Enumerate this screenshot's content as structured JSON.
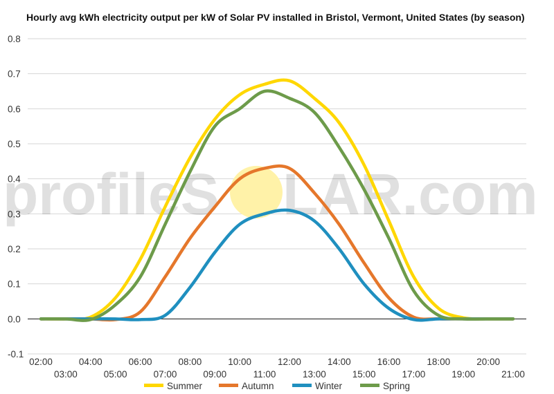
{
  "chart_data": {
    "type": "line",
    "title": "Hourly avg kWh electricity output per kW of Solar PV installed in Bristol, Vermont, United States (by season)",
    "xlabel": "",
    "ylabel": "",
    "x": [
      "02:00",
      "03:00",
      "04:00",
      "05:00",
      "06:00",
      "07:00",
      "08:00",
      "09:00",
      "10:00",
      "11:00",
      "12:00",
      "13:00",
      "14:00",
      "15:00",
      "16:00",
      "17:00",
      "18:00",
      "19:00",
      "20:00",
      "21:00"
    ],
    "x_ticks_top": [
      "02:00",
      "04:00",
      "06:00",
      "08:00",
      "10:00",
      "12:00",
      "14:00",
      "16:00",
      "18:00",
      "20:00"
    ],
    "x_ticks_bottom": [
      "03:00",
      "05:00",
      "07:00",
      "09:00",
      "11:00",
      "13:00",
      "15:00",
      "17:00",
      "19:00",
      "21:00"
    ],
    "y_ticks": [
      "0.8",
      "0.7",
      "0.6",
      "0.5",
      "0.4",
      "0.3",
      "0.2",
      "0.1",
      "0.0",
      "-0.1"
    ],
    "ylim": [
      -0.1,
      0.8
    ],
    "grid": true,
    "legend_position": "bottom",
    "series": [
      {
        "name": "Summer",
        "color": "#ffd700",
        "values": [
          0.0,
          0.0,
          0.005,
          0.06,
          0.17,
          0.32,
          0.46,
          0.57,
          0.64,
          0.67,
          0.68,
          0.63,
          0.56,
          0.44,
          0.28,
          0.12,
          0.03,
          0.003,
          0.0,
          0.0
        ]
      },
      {
        "name": "Autumn",
        "color": "#e5772b",
        "values": [
          0.0,
          0.0,
          0.0,
          -0.002,
          0.02,
          0.12,
          0.23,
          0.32,
          0.4,
          0.43,
          0.43,
          0.36,
          0.27,
          0.16,
          0.06,
          0.005,
          0.0,
          0.0,
          0.0,
          0.0
        ]
      },
      {
        "name": "Winter",
        "color": "#1f8fbf",
        "values": [
          0.0,
          0.0,
          0.0,
          0.0,
          -0.002,
          0.01,
          0.09,
          0.19,
          0.27,
          0.3,
          0.31,
          0.28,
          0.2,
          0.1,
          0.03,
          -0.002,
          0.0,
          0.0,
          0.0,
          0.0
        ]
      },
      {
        "name": "Spring",
        "color": "#6d9b4a",
        "values": [
          0.0,
          0.0,
          -0.002,
          0.04,
          0.12,
          0.27,
          0.42,
          0.55,
          0.6,
          0.65,
          0.63,
          0.59,
          0.49,
          0.37,
          0.23,
          0.08,
          0.01,
          0.0,
          0.0,
          0.0
        ]
      }
    ]
  },
  "watermark": {
    "text_left": "profileS",
    "text_right": "LAR.com",
    "sun_color": "#fff2a8"
  }
}
